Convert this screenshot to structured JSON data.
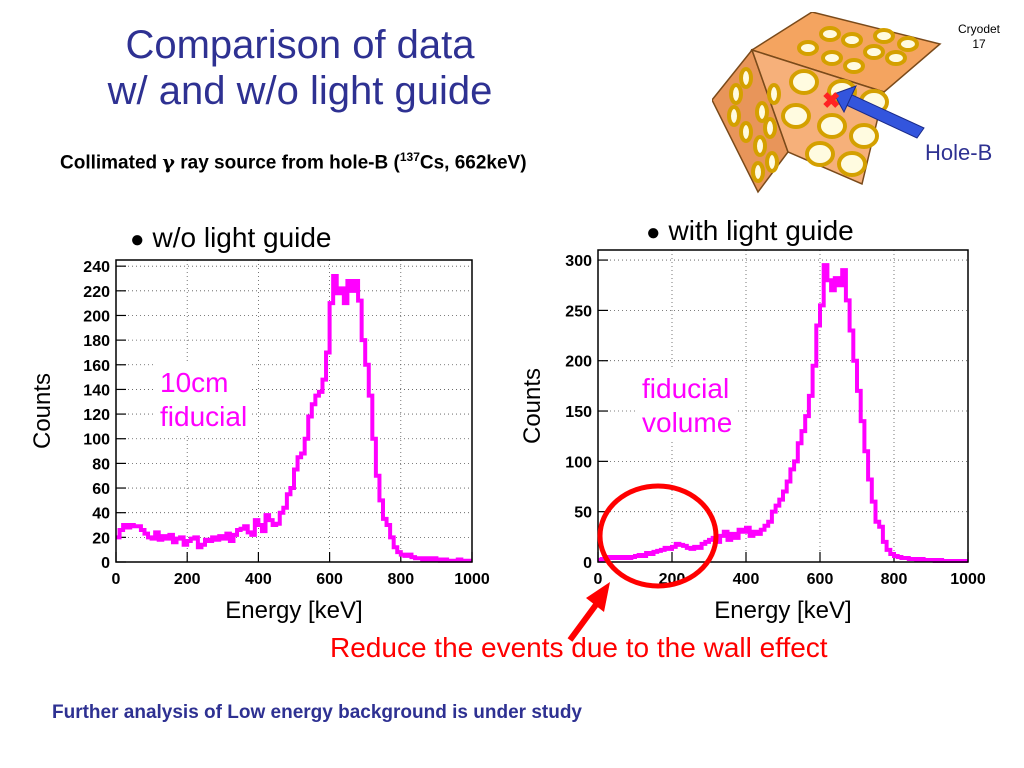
{
  "slide": {
    "number_line1": "Cryodet",
    "number_line2": "17",
    "title_line1": "Comparison of data",
    "title_line2": "w/ and w/o light guide",
    "subtitle_pre": "Collimated ",
    "subtitle_gamma": "γ",
    "subtitle_mid": " ray source from hole-B (",
    "subtitle_sup": "137",
    "subtitle_post": "Cs, 662keV)",
    "hole_label": "Hole-B",
    "reduce_text": "Reduce the events due to the wall effect",
    "footer_text": "Further analysis of Low energy background is under study",
    "bullet": "●"
  },
  "colors": {
    "title": "#2e3192",
    "histogram": "#ff00ff",
    "annotation": "#ff0000",
    "detector_face": "#f4a460",
    "pmt_ring": "#d4a000",
    "arrow_blue": "#3355dd"
  },
  "chart_data": [
    {
      "type": "line",
      "title": "w/o light guide",
      "xlabel": "Energy [keV]",
      "ylabel": "Counts",
      "xlim": [
        0,
        1000
      ],
      "ylim": [
        0,
        245
      ],
      "grid": true,
      "xticks": [
        "0",
        "200",
        "400",
        "600",
        "800",
        "1000"
      ],
      "xtick_values": [
        0,
        200,
        400,
        600,
        800,
        1000
      ],
      "yticks": [
        "0",
        "20",
        "40",
        "60",
        "80",
        "100",
        "120",
        "140",
        "160",
        "180",
        "200",
        "220",
        "240"
      ],
      "ytick_values": [
        0,
        20,
        40,
        60,
        80,
        100,
        120,
        140,
        160,
        180,
        200,
        220,
        240
      ],
      "annotation_lines": [
        "10cm",
        "fiducial"
      ],
      "series": [
        {
          "bin_width": 10,
          "x": [
            0,
            10,
            20,
            30,
            40,
            50,
            60,
            70,
            80,
            90,
            100,
            110,
            120,
            130,
            140,
            150,
            160,
            170,
            180,
            190,
            200,
            210,
            220,
            230,
            240,
            250,
            260,
            270,
            280,
            290,
            300,
            310,
            320,
            330,
            340,
            350,
            360,
            370,
            380,
            390,
            400,
            410,
            420,
            430,
            440,
            450,
            460,
            470,
            480,
            490,
            500,
            510,
            520,
            530,
            540,
            550,
            560,
            570,
            580,
            590,
            600,
            610,
            620,
            630,
            640,
            650,
            660,
            670,
            680,
            690,
            700,
            710,
            720,
            730,
            740,
            750,
            760,
            770,
            780,
            790,
            800,
            810,
            820,
            830,
            840,
            850,
            860,
            870,
            880,
            890,
            900,
            910,
            920,
            930,
            940,
            950,
            960,
            970,
            980,
            990
          ],
          "values": [
            20,
            26,
            30,
            28,
            30,
            29,
            29,
            26,
            23,
            20,
            19,
            24,
            18,
            21,
            19,
            22,
            16,
            19,
            20,
            14,
            17,
            19,
            20,
            12,
            14,
            18,
            17,
            20,
            18,
            21,
            19,
            23,
            17,
            22,
            26,
            27,
            29,
            24,
            22,
            34,
            30,
            25,
            38,
            34,
            30,
            31,
            40,
            44,
            55,
            60,
            75,
            85,
            88,
            100,
            118,
            128,
            135,
            138,
            148,
            170,
            210,
            232,
            218,
            222,
            210,
            228,
            220,
            228,
            212,
            180,
            160,
            135,
            100,
            70,
            50,
            35,
            30,
            20,
            12,
            8,
            6,
            5,
            6,
            4,
            3,
            3,
            2,
            3,
            2,
            3,
            2,
            1,
            2,
            1,
            1,
            1,
            2,
            1,
            1,
            1
          ]
        }
      ]
    },
    {
      "type": "line",
      "title": "with light guide",
      "xlabel": "Energy [keV]",
      "ylabel": "Counts",
      "xlim": [
        0,
        1000
      ],
      "ylim": [
        0,
        310
      ],
      "grid": true,
      "xticks": [
        "0",
        "200",
        "400",
        "600",
        "800",
        "1000"
      ],
      "xtick_values": [
        0,
        200,
        400,
        600,
        800,
        1000
      ],
      "yticks": [
        "0",
        "50",
        "100",
        "150",
        "200",
        "250",
        "300"
      ],
      "ytick_values": [
        0,
        50,
        100,
        150,
        200,
        250,
        300
      ],
      "annotation_lines": [
        "fiducial",
        "volume"
      ],
      "series": [
        {
          "bin_width": 10,
          "x": [
            0,
            10,
            20,
            30,
            40,
            50,
            60,
            70,
            80,
            90,
            100,
            110,
            120,
            130,
            140,
            150,
            160,
            170,
            180,
            190,
            200,
            210,
            220,
            230,
            240,
            250,
            260,
            270,
            280,
            290,
            300,
            310,
            320,
            330,
            340,
            350,
            360,
            370,
            380,
            390,
            400,
            410,
            420,
            430,
            440,
            450,
            460,
            470,
            480,
            490,
            500,
            510,
            520,
            530,
            540,
            550,
            560,
            570,
            580,
            590,
            600,
            610,
            620,
            630,
            640,
            650,
            660,
            670,
            680,
            690,
            700,
            710,
            720,
            730,
            740,
            750,
            760,
            770,
            780,
            790,
            800,
            810,
            820,
            830,
            840,
            850,
            860,
            870,
            880,
            890,
            900,
            910,
            920,
            930,
            940,
            950,
            960,
            970,
            980,
            990
          ],
          "values": [
            2,
            3,
            4,
            5,
            4,
            5,
            4,
            5,
            4,
            5,
            6,
            7,
            6,
            9,
            8,
            10,
            11,
            12,
            14,
            13,
            15,
            18,
            17,
            16,
            14,
            13,
            15,
            14,
            18,
            20,
            22,
            24,
            20,
            26,
            30,
            22,
            28,
            24,
            32,
            30,
            34,
            26,
            30,
            28,
            32,
            36,
            40,
            50,
            56,
            62,
            70,
            80,
            92,
            100,
            118,
            130,
            145,
            165,
            195,
            235,
            255,
            295,
            280,
            270,
            282,
            275,
            290,
            260,
            230,
            200,
            170,
            140,
            110,
            82,
            60,
            40,
            35,
            20,
            12,
            8,
            6,
            5,
            4,
            4,
            3,
            3,
            2,
            3,
            2,
            2,
            2,
            1,
            2,
            1,
            1,
            1,
            1,
            1,
            1,
            1
          ]
        }
      ]
    }
  ]
}
